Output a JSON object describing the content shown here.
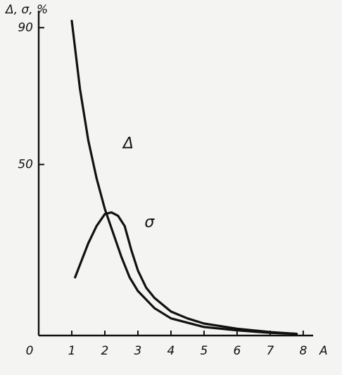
{
  "chart_data": {
    "type": "line",
    "y_label": "Δ, σ, %",
    "x_label": "A",
    "xlim": [
      0,
      8.3
    ],
    "ylim": [
      0,
      95
    ],
    "xticks": [
      0,
      1,
      2,
      3,
      4,
      5,
      6,
      7,
      8
    ],
    "yticks": [
      50,
      90
    ],
    "grid": false,
    "series": [
      {
        "name": "Δ",
        "color": "#111111",
        "x": [
          1,
          1.25,
          1.5,
          1.75,
          2,
          2.25,
          2.5,
          2.75,
          3,
          3.5,
          4,
          5,
          6,
          7,
          7.8
        ],
        "values": [
          92,
          72,
          57,
          46,
          37,
          30,
          23,
          17,
          13,
          8,
          5,
          2.5,
          1.5,
          0.8,
          0.5
        ]
      },
      {
        "name": "σ",
        "color": "#111111",
        "x": [
          1.1,
          1.3,
          1.5,
          1.75,
          2,
          2.2,
          2.4,
          2.6,
          2.8,
          3,
          3.25,
          3.5,
          4,
          4.5,
          5,
          6,
          7,
          7.8
        ],
        "values": [
          17,
          22,
          27,
          32,
          35.5,
          36,
          35,
          32,
          25,
          19,
          14,
          11,
          7,
          5,
          3.5,
          2,
          1,
          0.5
        ]
      }
    ]
  }
}
